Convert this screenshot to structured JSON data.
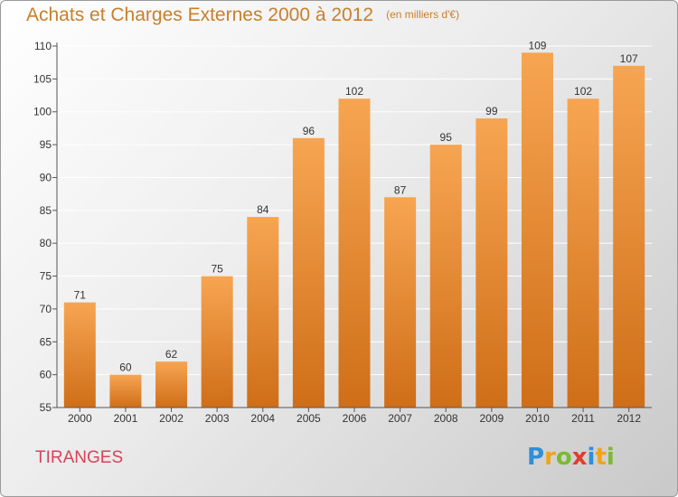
{
  "title": "Achats et Charges Externes 2000 à 2012",
  "subtitle": "(en milliers d'€)",
  "commune": "TIRANGES",
  "logo": {
    "text": "Proxiti",
    "letters": [
      {
        "char": "P",
        "color": "#2f8fd8"
      },
      {
        "char": "r",
        "color": "#f2a417"
      },
      {
        "char": "o",
        "color": "#7cba2e"
      },
      {
        "char": "x",
        "color": "#e33b2f"
      },
      {
        "char": "i",
        "color": "#2f8fd8"
      },
      {
        "char": "t",
        "color": "#f2a417"
      },
      {
        "char": "i",
        "color": "#7cba2e"
      }
    ]
  },
  "colors": {
    "bar_top": "#f7a552",
    "bar_bottom": "#cf6e18",
    "text": "#333333",
    "grid": "#ffffff",
    "title": "#c87f2c"
  },
  "chart_data": {
    "type": "bar",
    "title": "Achats et Charges Externes 2000 à 2012",
    "subtitle": "(en milliers d'€)",
    "categories": [
      "2000",
      "2001",
      "2002",
      "2003",
      "2004",
      "2005",
      "2006",
      "2007",
      "2008",
      "2009",
      "2010",
      "2011",
      "2012"
    ],
    "values": [
      71,
      60,
      62,
      75,
      84,
      96,
      102,
      87,
      95,
      99,
      109,
      102,
      107
    ],
    "ylim": [
      55,
      110
    ],
    "yticks": [
      55,
      60,
      65,
      70,
      75,
      80,
      85,
      90,
      95,
      100,
      105,
      110
    ],
    "grid": true,
    "data_labels": true
  }
}
